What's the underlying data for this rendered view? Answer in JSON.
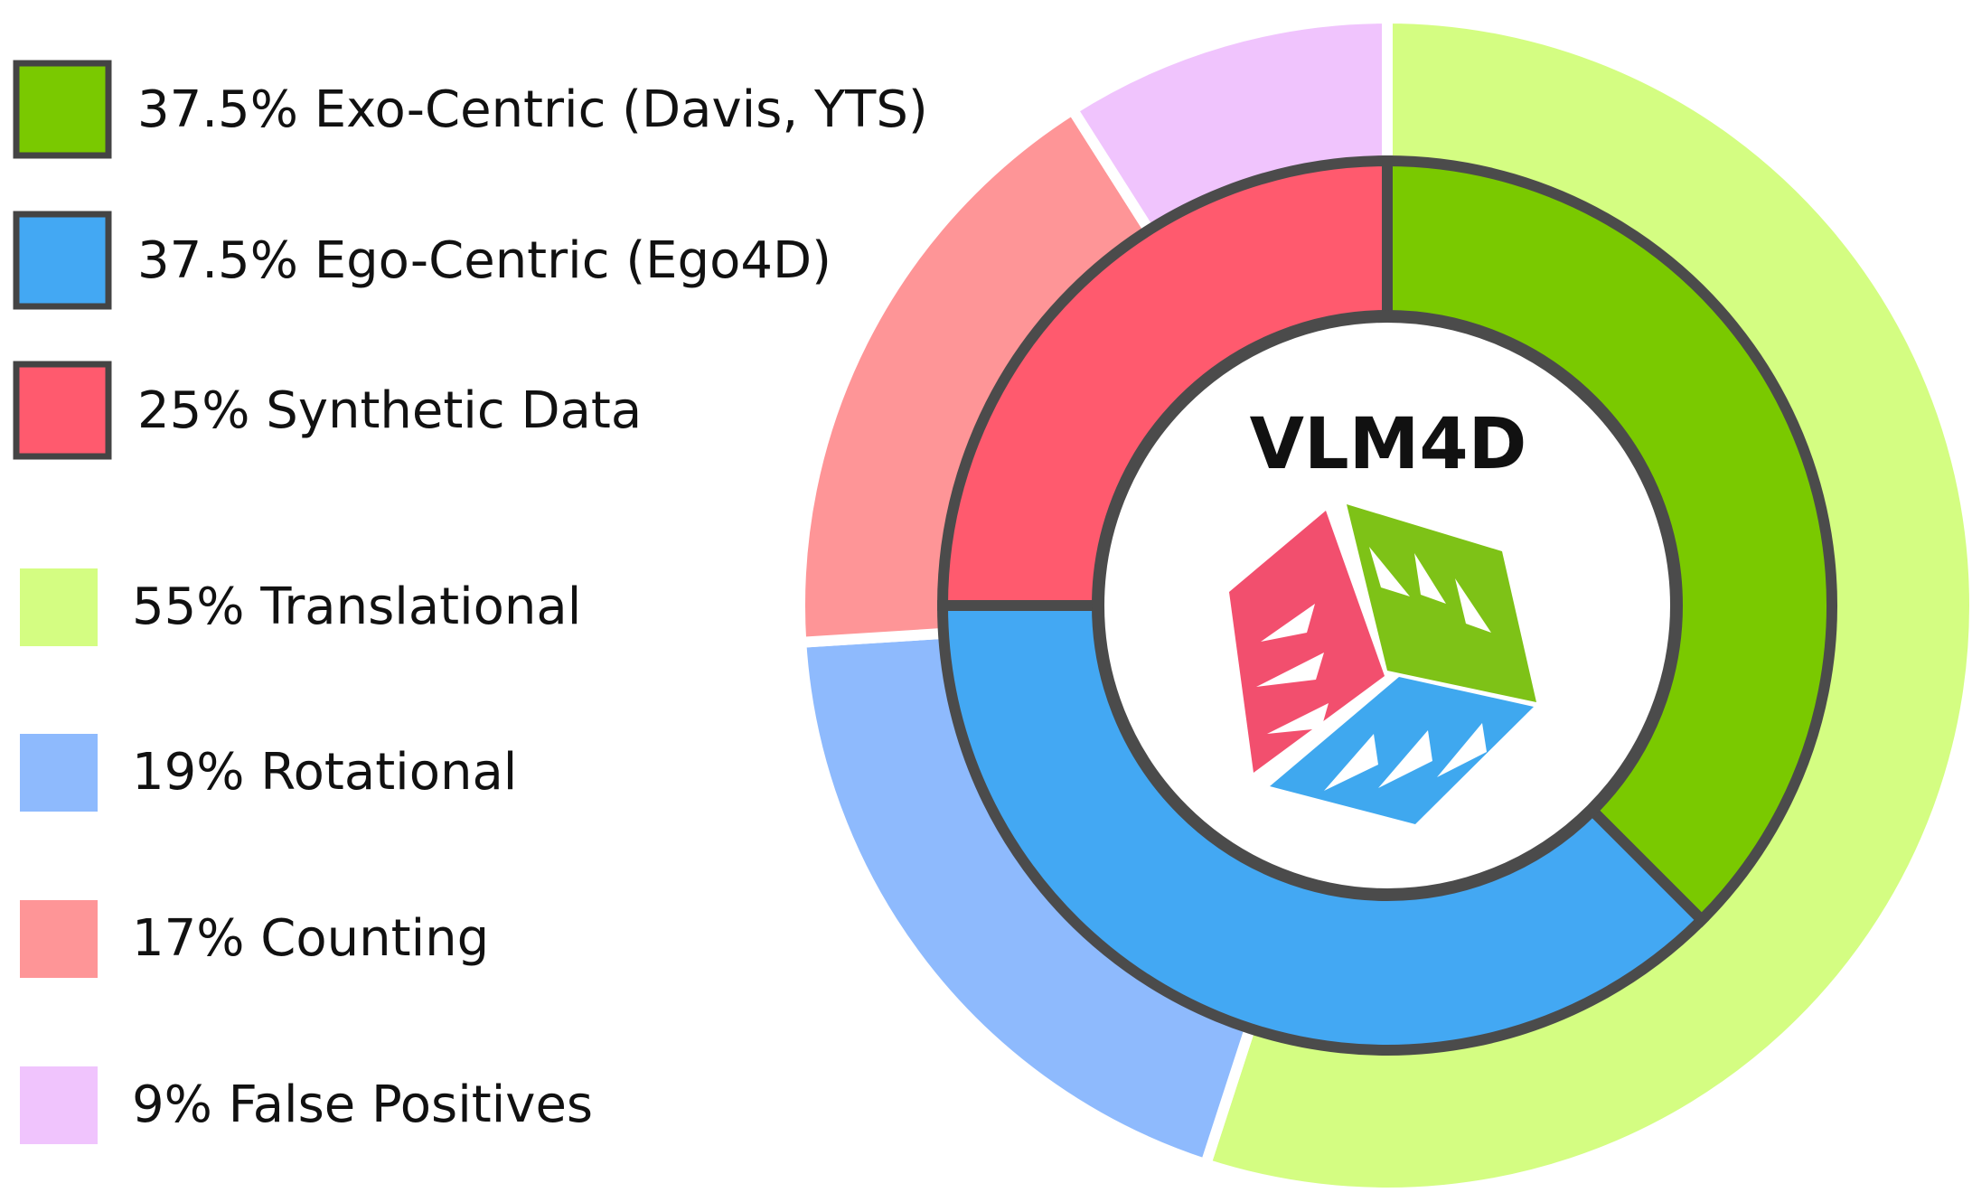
{
  "chart_data": {
    "type": "pie",
    "title": "VLM4D",
    "inner_ring": {
      "categories": [
        "Exo-Centric (Davis, YTS)",
        "Ego-Centric (Ego4D)",
        "Synthetic Data"
      ],
      "values": [
        37.5,
        37.5,
        25
      ],
      "legend_labels": [
        "37.5% Exo-Centric (Davis, YTS)",
        "37.5% Ego-Centric (Ego4D)",
        "25% Synthetic Data"
      ],
      "colors": [
        "#7ac900",
        "#43a8f3",
        "#ff5a6e"
      ]
    },
    "outer_ring": {
      "categories": [
        "Translational",
        "Rotational",
        "Counting",
        "False Positives"
      ],
      "values": [
        55,
        19,
        17,
        9
      ],
      "legend_labels": [
        "55% Translational",
        "19% Rotational",
        "17% Counting",
        "9% False Positives"
      ],
      "colors": [
        "#d4fd82",
        "#8ebafd",
        "#fe9597",
        "#f0c4fd"
      ]
    },
    "legend_placement": "left",
    "grid": false
  },
  "logo": {
    "colors": {
      "red": "#f24f6e",
      "green": "#7ec217",
      "blue": "#3fa8ef"
    }
  }
}
